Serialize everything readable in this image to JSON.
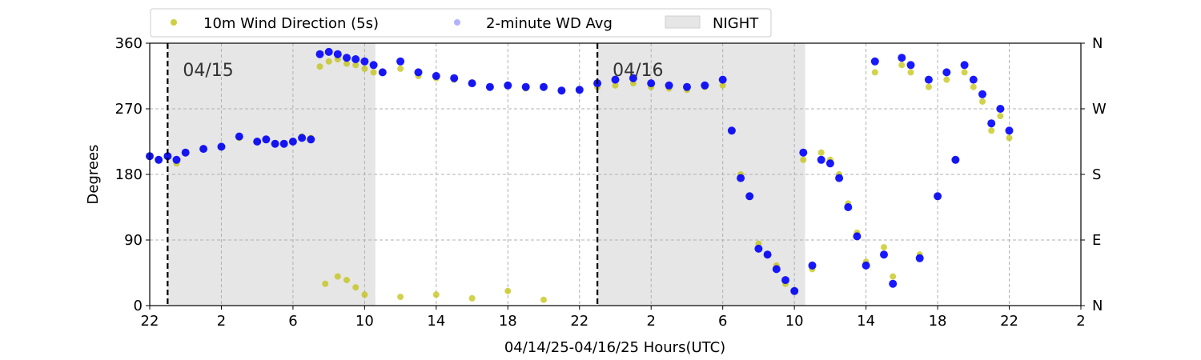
{
  "chart_data": {
    "type": "scatter",
    "xlabel": "04/14/25-04/16/25  Hours(UTC)",
    "ylabel": "Degrees",
    "x_domain_hours": [
      0,
      52
    ],
    "x_ticks": [
      {
        "h": 0,
        "label": "22"
      },
      {
        "h": 4,
        "label": "2"
      },
      {
        "h": 8,
        "label": "6"
      },
      {
        "h": 12,
        "label": "10"
      },
      {
        "h": 16,
        "label": "14"
      },
      {
        "h": 20,
        "label": "18"
      },
      {
        "h": 24,
        "label": "22"
      },
      {
        "h": 28,
        "label": "2"
      },
      {
        "h": 32,
        "label": "6"
      },
      {
        "h": 36,
        "label": "10"
      },
      {
        "h": 40,
        "label": "14"
      },
      {
        "h": 44,
        "label": "18"
      },
      {
        "h": 48,
        "label": "22"
      },
      {
        "h": 52,
        "label": "2"
      }
    ],
    "ylim": [
      0,
      360
    ],
    "y_ticks": [
      0,
      90,
      180,
      270,
      360
    ],
    "y2_ticks": [
      {
        "v": 0,
        "label": "N"
      },
      {
        "v": 90,
        "label": "E"
      },
      {
        "v": 180,
        "label": "S"
      },
      {
        "v": 270,
        "label": "W"
      },
      {
        "v": 360,
        "label": "N"
      }
    ],
    "grid": true,
    "legend_position": "top",
    "legend": [
      {
        "label": "10m Wind Direction (5s)",
        "color": "#bfbf00",
        "kind": "dot"
      },
      {
        "label": "2-minute WD Avg",
        "color": "#0000ff",
        "kind": "dot-faint"
      },
      {
        "label": "NIGHT",
        "color": "#e6e6e6",
        "kind": "box"
      }
    ],
    "night_periods_hours": [
      [
        1,
        12.6
      ],
      [
        25,
        36.6
      ]
    ],
    "day_markers": [
      {
        "h": 1,
        "label": "04/15"
      },
      {
        "h": 25,
        "label": "04/16"
      }
    ],
    "series": [
      {
        "name": "10m Wind Direction (5s)",
        "color": "#bfbf00",
        "points": [
          [
            0,
            205
          ],
          [
            0.5,
            200
          ],
          [
            1,
            205
          ],
          [
            1.5,
            195
          ],
          [
            2,
            210
          ],
          [
            3,
            215
          ],
          [
            4,
            218
          ],
          [
            5,
            230
          ],
          [
            6,
            225
          ],
          [
            6.5,
            228
          ],
          [
            7,
            222
          ],
          [
            7.5,
            222
          ],
          [
            8,
            225
          ],
          [
            8.5,
            232
          ],
          [
            9,
            230
          ],
          [
            9.5,
            328
          ],
          [
            10,
            335
          ],
          [
            10.5,
            338
          ],
          [
            11,
            332
          ],
          [
            11.5,
            330
          ],
          [
            12,
            325
          ],
          [
            12.5,
            320
          ],
          [
            13,
            320
          ],
          [
            14,
            325
          ],
          [
            15,
            315
          ],
          [
            16,
            312
          ],
          [
            17,
            310
          ],
          [
            18,
            305
          ],
          [
            19,
            300
          ],
          [
            20,
            302
          ],
          [
            21,
            298
          ],
          [
            22,
            300
          ],
          [
            23,
            295
          ],
          [
            24,
            296
          ],
          [
            25,
            300
          ],
          [
            26,
            302
          ],
          [
            27,
            305
          ],
          [
            28,
            300
          ],
          [
            29,
            298
          ],
          [
            30,
            296
          ],
          [
            31,
            300
          ],
          [
            32,
            302
          ],
          [
            32.5,
            240
          ],
          [
            33,
            180
          ],
          [
            33.5,
            150
          ],
          [
            34,
            85
          ],
          [
            34.5,
            70
          ],
          [
            35,
            55
          ],
          [
            35.5,
            30
          ],
          [
            36,
            20
          ],
          [
            36.5,
            200
          ],
          [
            37,
            50
          ],
          [
            37.5,
            210
          ],
          [
            38,
            200
          ],
          [
            38.5,
            180
          ],
          [
            39,
            140
          ],
          [
            39.5,
            100
          ],
          [
            40,
            60
          ],
          [
            40.5,
            320
          ],
          [
            41,
            80
          ],
          [
            41.5,
            40
          ],
          [
            42,
            330
          ],
          [
            42.5,
            320
          ],
          [
            43,
            70
          ],
          [
            43.5,
            300
          ],
          [
            44,
            150
          ],
          [
            44.5,
            310
          ],
          [
            45,
            200
          ],
          [
            45.5,
            320
          ],
          [
            46,
            300
          ],
          [
            46.5,
            280
          ],
          [
            47,
            240
          ],
          [
            47.5,
            260
          ],
          [
            48,
            230
          ],
          [
            9.8,
            30
          ],
          [
            10.5,
            40
          ],
          [
            11,
            35
          ],
          [
            11.5,
            25
          ],
          [
            12,
            15
          ],
          [
            14,
            12
          ],
          [
            16,
            15
          ],
          [
            18,
            10
          ],
          [
            20,
            20
          ],
          [
            22,
            8
          ]
        ]
      },
      {
        "name": "2-minute WD Avg",
        "color": "#0000ff",
        "points": [
          [
            0,
            205
          ],
          [
            0.5,
            200
          ],
          [
            1,
            205
          ],
          [
            1.5,
            200
          ],
          [
            2,
            210
          ],
          [
            3,
            215
          ],
          [
            4,
            218
          ],
          [
            5,
            232
          ],
          [
            6,
            225
          ],
          [
            6.5,
            228
          ],
          [
            7,
            222
          ],
          [
            7.5,
            222
          ],
          [
            8,
            225
          ],
          [
            8.5,
            230
          ],
          [
            9,
            228
          ],
          [
            9.5,
            345
          ],
          [
            10,
            348
          ],
          [
            10.5,
            345
          ],
          [
            11,
            340
          ],
          [
            11.5,
            338
          ],
          [
            12,
            335
          ],
          [
            12.5,
            330
          ],
          [
            13,
            320
          ],
          [
            14,
            335
          ],
          [
            15,
            320
          ],
          [
            16,
            315
          ],
          [
            17,
            312
          ],
          [
            18,
            305
          ],
          [
            19,
            300
          ],
          [
            20,
            302
          ],
          [
            21,
            300
          ],
          [
            22,
            300
          ],
          [
            23,
            295
          ],
          [
            24,
            296
          ],
          [
            25,
            305
          ],
          [
            26,
            310
          ],
          [
            27,
            312
          ],
          [
            28,
            305
          ],
          [
            29,
            302
          ],
          [
            30,
            300
          ],
          [
            31,
            302
          ],
          [
            32,
            310
          ],
          [
            32.5,
            240
          ],
          [
            33,
            175
          ],
          [
            33.5,
            150
          ],
          [
            34,
            78
          ],
          [
            34.5,
            70
          ],
          [
            35,
            50
          ],
          [
            35.5,
            35
          ],
          [
            36,
            20
          ],
          [
            36.5,
            210
          ],
          [
            37,
            55
          ],
          [
            37.5,
            200
          ],
          [
            38,
            195
          ],
          [
            38.5,
            175
          ],
          [
            39,
            135
          ],
          [
            39.5,
            95
          ],
          [
            40,
            55
          ],
          [
            40.5,
            335
          ],
          [
            41,
            70
          ],
          [
            41.5,
            30
          ],
          [
            42,
            340
          ],
          [
            42.5,
            330
          ],
          [
            43,
            65
          ],
          [
            43.5,
            310
          ],
          [
            44,
            150
          ],
          [
            44.5,
            320
          ],
          [
            45,
            200
          ],
          [
            45.5,
            330
          ],
          [
            46,
            310
          ],
          [
            46.5,
            290
          ],
          [
            47,
            250
          ],
          [
            47.5,
            270
          ],
          [
            48,
            240
          ]
        ]
      }
    ]
  }
}
